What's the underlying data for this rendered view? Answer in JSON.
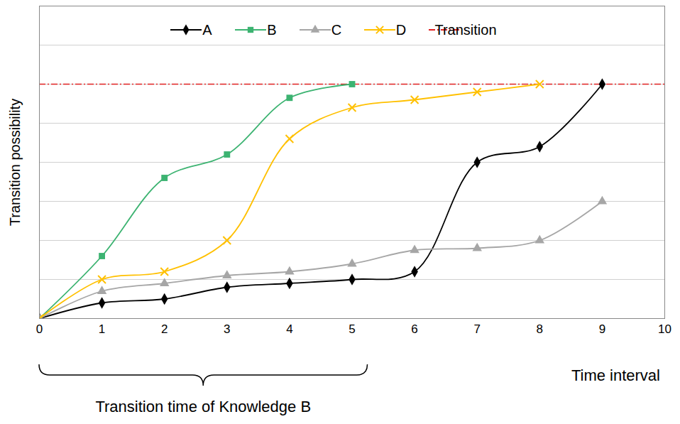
{
  "chart_data": {
    "type": "line",
    "x_label": "Time interval",
    "y_label": "Transition possibility",
    "x": [
      0,
      1,
      2,
      3,
      4,
      5,
      6,
      7,
      8,
      9
    ],
    "xlim": [
      0,
      10
    ],
    "xticks": [
      0,
      1,
      2,
      3,
      4,
      5,
      6,
      7,
      8,
      9,
      10
    ],
    "ylim": [
      0,
      8
    ],
    "yticks": [
      0,
      1,
      2,
      3,
      4,
      5,
      6,
      7,
      8
    ],
    "grid": true,
    "tick_labels": "x",
    "legend": "top",
    "line_style": "smooth",
    "series": [
      {
        "name": "A",
        "color": "#000000",
        "marker": "diamond",
        "values": [
          0,
          0.4,
          0.5,
          0.8,
          0.9,
          1.0,
          1.2,
          4.0,
          4.4,
          6.0
        ]
      },
      {
        "name": "B",
        "color": "#3cb371",
        "marker": "square",
        "values": [
          0,
          1.6,
          3.6,
          4.2,
          5.65,
          6.0,
          null,
          null,
          null,
          null
        ]
      },
      {
        "name": "C",
        "color": "#a6a6a6",
        "marker": "triangle",
        "values": [
          0,
          0.7,
          0.9,
          1.1,
          1.2,
          1.4,
          1.75,
          1.8,
          2.0,
          3.0
        ]
      },
      {
        "name": "D",
        "color": "#ffc000",
        "marker": "x",
        "values": [
          0,
          1.0,
          1.2,
          2.0,
          4.6,
          5.4,
          5.6,
          5.8,
          6.0,
          null
        ]
      }
    ],
    "hlines": [
      {
        "name": "Transition",
        "y": 6,
        "color": "#e02020",
        "line_style": "dashdot"
      }
    ],
    "annotations": [
      {
        "text": "Transition time of Knowledge B",
        "x_range": [
          0,
          5.25
        ]
      }
    ]
  }
}
